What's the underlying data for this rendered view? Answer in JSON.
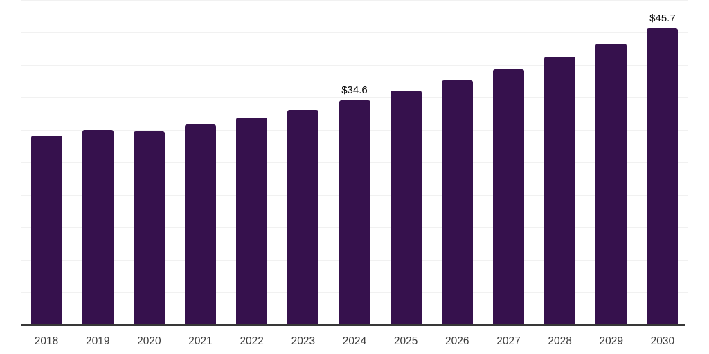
{
  "chart_data": {
    "type": "bar",
    "title": "",
    "xlabel": "",
    "ylabel": "",
    "categories": [
      "2018",
      "2019",
      "2020",
      "2021",
      "2022",
      "2023",
      "2024",
      "2025",
      "2026",
      "2027",
      "2028",
      "2029",
      "2030"
    ],
    "values": [
      29.2,
      30.1,
      29.8,
      30.9,
      32.0,
      33.2,
      34.6,
      36.1,
      37.7,
      39.4,
      41.4,
      43.4,
      45.7
    ],
    "data_labels": [
      "",
      "",
      "",
      "",
      "",
      "",
      "$34.6",
      "",
      "",
      "",
      "",
      "",
      "$45.7"
    ],
    "ylim": [
      0,
      50
    ],
    "gridline_step": 5,
    "grid": "horizontal",
    "legend": "none",
    "colors": {
      "bar": "#36114d",
      "gridline": "#f1f1f1",
      "axis": "#383838",
      "value_label": "#0a0a0a",
      "tick_label": "#3d3d3d",
      "background": "#ffffff"
    }
  }
}
